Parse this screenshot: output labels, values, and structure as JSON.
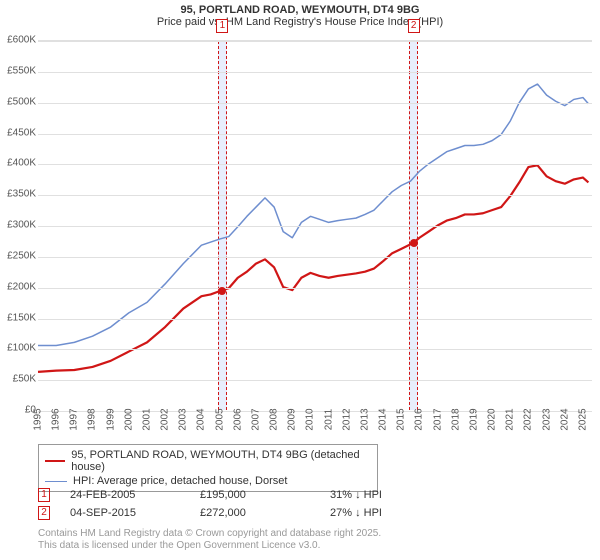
{
  "title": "95, PORTLAND ROAD, WEYMOUTH, DT4 9BG",
  "subtitle": "Price paid vs. HM Land Registry's House Price Index (HPI)",
  "title_fontsize": 12,
  "subtitle_fontsize": 11,
  "chart": {
    "type": "line",
    "background_color": "#ffffff",
    "grid_color": "#e0e0e0",
    "xlim": [
      1995,
      2025.5
    ],
    "ylim": [
      0,
      600000
    ],
    "ytick_step": 50000,
    "yticks": [
      "£0",
      "£50K",
      "£100K",
      "£150K",
      "£200K",
      "£250K",
      "£300K",
      "£350K",
      "£400K",
      "£450K",
      "£500K",
      "£550K",
      "£600K"
    ],
    "xticks": [
      1995,
      1996,
      1997,
      1998,
      1999,
      2000,
      2001,
      2002,
      2003,
      2004,
      2005,
      2006,
      2007,
      2008,
      2009,
      2010,
      2011,
      2012,
      2013,
      2014,
      2015,
      2016,
      2017,
      2018,
      2019,
      2020,
      2021,
      2022,
      2023,
      2024,
      2025
    ],
    "highlight_bands": [
      {
        "x_start": 2004.9,
        "x_end": 2005.4,
        "color": "#e8eefc"
      },
      {
        "x_start": 2015.4,
        "x_end": 2015.9,
        "color": "#e8eefc"
      }
    ],
    "series": [
      {
        "name": "price_paid",
        "label": "95, PORTLAND ROAD, WEYMOUTH, DT4 9BG (detached house)",
        "color": "#d01616",
        "line_width": 2.2,
        "points": [
          [
            1995,
            62000
          ],
          [
            1996,
            64000
          ],
          [
            1997,
            65000
          ],
          [
            1998,
            70000
          ],
          [
            1999,
            80000
          ],
          [
            2000,
            95000
          ],
          [
            2001,
            110000
          ],
          [
            2002,
            135000
          ],
          [
            2003,
            165000
          ],
          [
            2004,
            185000
          ],
          [
            2004.5,
            188000
          ],
          [
            2005.15,
            195000
          ],
          [
            2005.5,
            198000
          ],
          [
            2006,
            215000
          ],
          [
            2006.5,
            225000
          ],
          [
            2007,
            238000
          ],
          [
            2007.5,
            245000
          ],
          [
            2008,
            232000
          ],
          [
            2008.5,
            200000
          ],
          [
            2009,
            195000
          ],
          [
            2009.5,
            215000
          ],
          [
            2010,
            223000
          ],
          [
            2010.5,
            218000
          ],
          [
            2011,
            215000
          ],
          [
            2011.5,
            218000
          ],
          [
            2012,
            220000
          ],
          [
            2012.5,
            222000
          ],
          [
            2013,
            225000
          ],
          [
            2013.5,
            230000
          ],
          [
            2014,
            242000
          ],
          [
            2014.5,
            255000
          ],
          [
            2015,
            262000
          ],
          [
            2015.68,
            272000
          ],
          [
            2016,
            280000
          ],
          [
            2016.5,
            290000
          ],
          [
            2017,
            300000
          ],
          [
            2017.5,
            308000
          ],
          [
            2018,
            312000
          ],
          [
            2018.5,
            318000
          ],
          [
            2019,
            318000
          ],
          [
            2019.5,
            320000
          ],
          [
            2020,
            325000
          ],
          [
            2020.5,
            330000
          ],
          [
            2021,
            348000
          ],
          [
            2021.5,
            370000
          ],
          [
            2022,
            395000
          ],
          [
            2022.5,
            398000
          ],
          [
            2023,
            380000
          ],
          [
            2023.5,
            372000
          ],
          [
            2024,
            368000
          ],
          [
            2024.5,
            375000
          ],
          [
            2025,
            378000
          ],
          [
            2025.3,
            370000
          ]
        ]
      },
      {
        "name": "hpi",
        "label": "HPI: Average price, detached house, Dorset",
        "color": "#6e8ecf",
        "line_width": 1.5,
        "points": [
          [
            1995,
            105000
          ],
          [
            1996,
            105000
          ],
          [
            1997,
            110000
          ],
          [
            1998,
            120000
          ],
          [
            1999,
            135000
          ],
          [
            2000,
            158000
          ],
          [
            2001,
            175000
          ],
          [
            2002,
            205000
          ],
          [
            2003,
            238000
          ],
          [
            2004,
            268000
          ],
          [
            2005,
            278000
          ],
          [
            2005.5,
            282000
          ],
          [
            2006,
            298000
          ],
          [
            2006.5,
            315000
          ],
          [
            2007,
            330000
          ],
          [
            2007.5,
            345000
          ],
          [
            2008,
            330000
          ],
          [
            2008.5,
            290000
          ],
          [
            2009,
            280000
          ],
          [
            2009.5,
            305000
          ],
          [
            2010,
            315000
          ],
          [
            2010.5,
            310000
          ],
          [
            2011,
            305000
          ],
          [
            2011.5,
            308000
          ],
          [
            2012,
            310000
          ],
          [
            2012.5,
            312000
          ],
          [
            2013,
            318000
          ],
          [
            2013.5,
            325000
          ],
          [
            2014,
            340000
          ],
          [
            2014.5,
            355000
          ],
          [
            2015,
            365000
          ],
          [
            2015.5,
            372000
          ],
          [
            2016,
            388000
          ],
          [
            2016.5,
            400000
          ],
          [
            2017,
            410000
          ],
          [
            2017.5,
            420000
          ],
          [
            2018,
            425000
          ],
          [
            2018.5,
            430000
          ],
          [
            2019,
            430000
          ],
          [
            2019.5,
            432000
          ],
          [
            2020,
            438000
          ],
          [
            2020.5,
            448000
          ],
          [
            2021,
            470000
          ],
          [
            2021.5,
            500000
          ],
          [
            2022,
            522000
          ],
          [
            2022.5,
            530000
          ],
          [
            2023,
            512000
          ],
          [
            2023.5,
            502000
          ],
          [
            2024,
            495000
          ],
          [
            2024.5,
            505000
          ],
          [
            2025,
            508000
          ],
          [
            2025.3,
            498000
          ]
        ]
      }
    ],
    "markers": [
      {
        "label": "1",
        "x": 2005.15,
        "y": 195000,
        "color": "#d01616"
      },
      {
        "label": "2",
        "x": 2015.68,
        "y": 272000,
        "color": "#d01616"
      }
    ]
  },
  "annotations": [
    {
      "num": "1",
      "date": "24-FEB-2005",
      "price": "£195,000",
      "delta": "31% ↓ HPI"
    },
    {
      "num": "2",
      "date": "04-SEP-2015",
      "price": "£272,000",
      "delta": "27% ↓ HPI"
    }
  ],
  "footer_line1": "Contains HM Land Registry data © Crown copyright and database right 2025.",
  "footer_line2": "This data is licensed under the Open Government Licence v3.0."
}
